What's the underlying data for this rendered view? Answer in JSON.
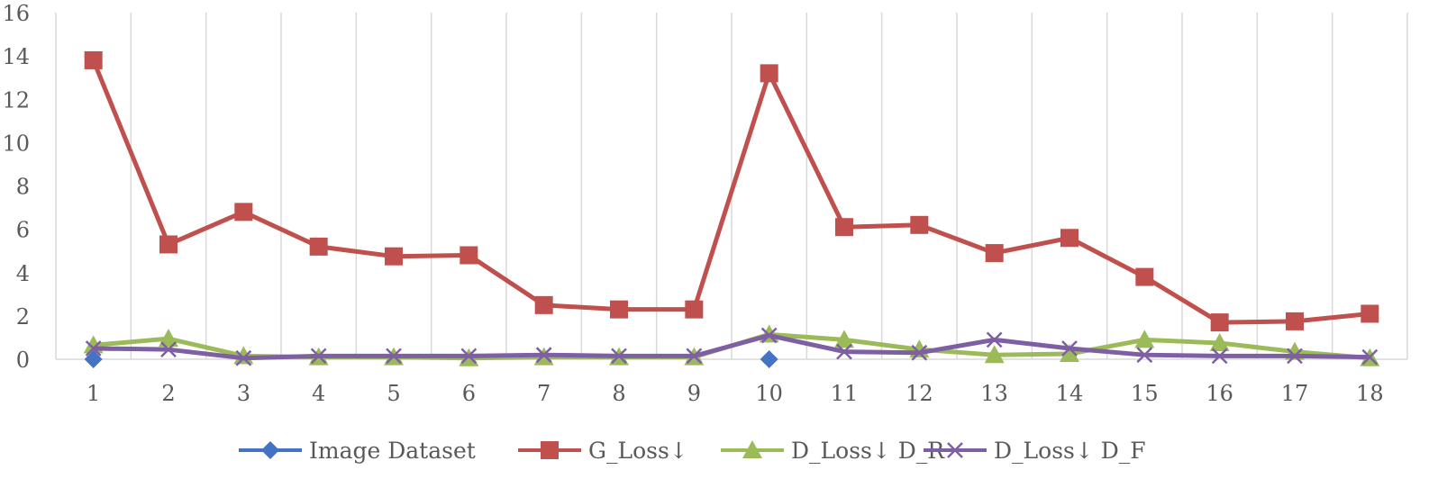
{
  "chart_data": {
    "type": "line",
    "title": "",
    "xlabel": "",
    "ylabel": "",
    "x": [
      1,
      2,
      3,
      4,
      5,
      6,
      7,
      8,
      9,
      10,
      11,
      12,
      13,
      14,
      15,
      16,
      17,
      18
    ],
    "categories": [
      "1",
      "2",
      "3",
      "4",
      "5",
      "6",
      "7",
      "8",
      "9",
      "10",
      "11",
      "12",
      "13",
      "14",
      "15",
      "16",
      "17",
      "18"
    ],
    "ylim": [
      0,
      16
    ],
    "yticks": [
      "0",
      "2",
      "4",
      "6",
      "8",
      "10",
      "12",
      "14",
      "16"
    ],
    "grid": "vertical",
    "legend_position": "bottom",
    "series": [
      {
        "name": "Image Dataset",
        "color": "#4472C4",
        "marker": "diamond",
        "points": [
          [
            1,
            0
          ],
          [
            10,
            0
          ]
        ]
      },
      {
        "name": "G_Loss↓",
        "color": "#C0504D",
        "marker": "square",
        "values": [
          13.8,
          5.3,
          6.8,
          5.2,
          4.75,
          4.8,
          2.5,
          2.3,
          2.3,
          13.2,
          6.1,
          6.2,
          4.9,
          5.6,
          3.8,
          1.7,
          1.75,
          2.1
        ]
      },
      {
        "name": "D_Loss↓ D_R",
        "color": "#9BBB59",
        "marker": "triangle",
        "values": [
          0.65,
          0.95,
          0.15,
          0.1,
          0.1,
          0.05,
          0.1,
          0.1,
          0.1,
          1.15,
          0.9,
          0.45,
          0.2,
          0.25,
          0.9,
          0.75,
          0.35,
          0.05
        ]
      },
      {
        "name": "D_Loss↓ D_F",
        "color": "#7F5FA4",
        "marker": "x",
        "values": [
          0.5,
          0.45,
          0.05,
          0.15,
          0.15,
          0.15,
          0.2,
          0.15,
          0.15,
          1.1,
          0.35,
          0.3,
          0.9,
          0.5,
          0.2,
          0.15,
          0.15,
          0.1
        ]
      }
    ]
  }
}
